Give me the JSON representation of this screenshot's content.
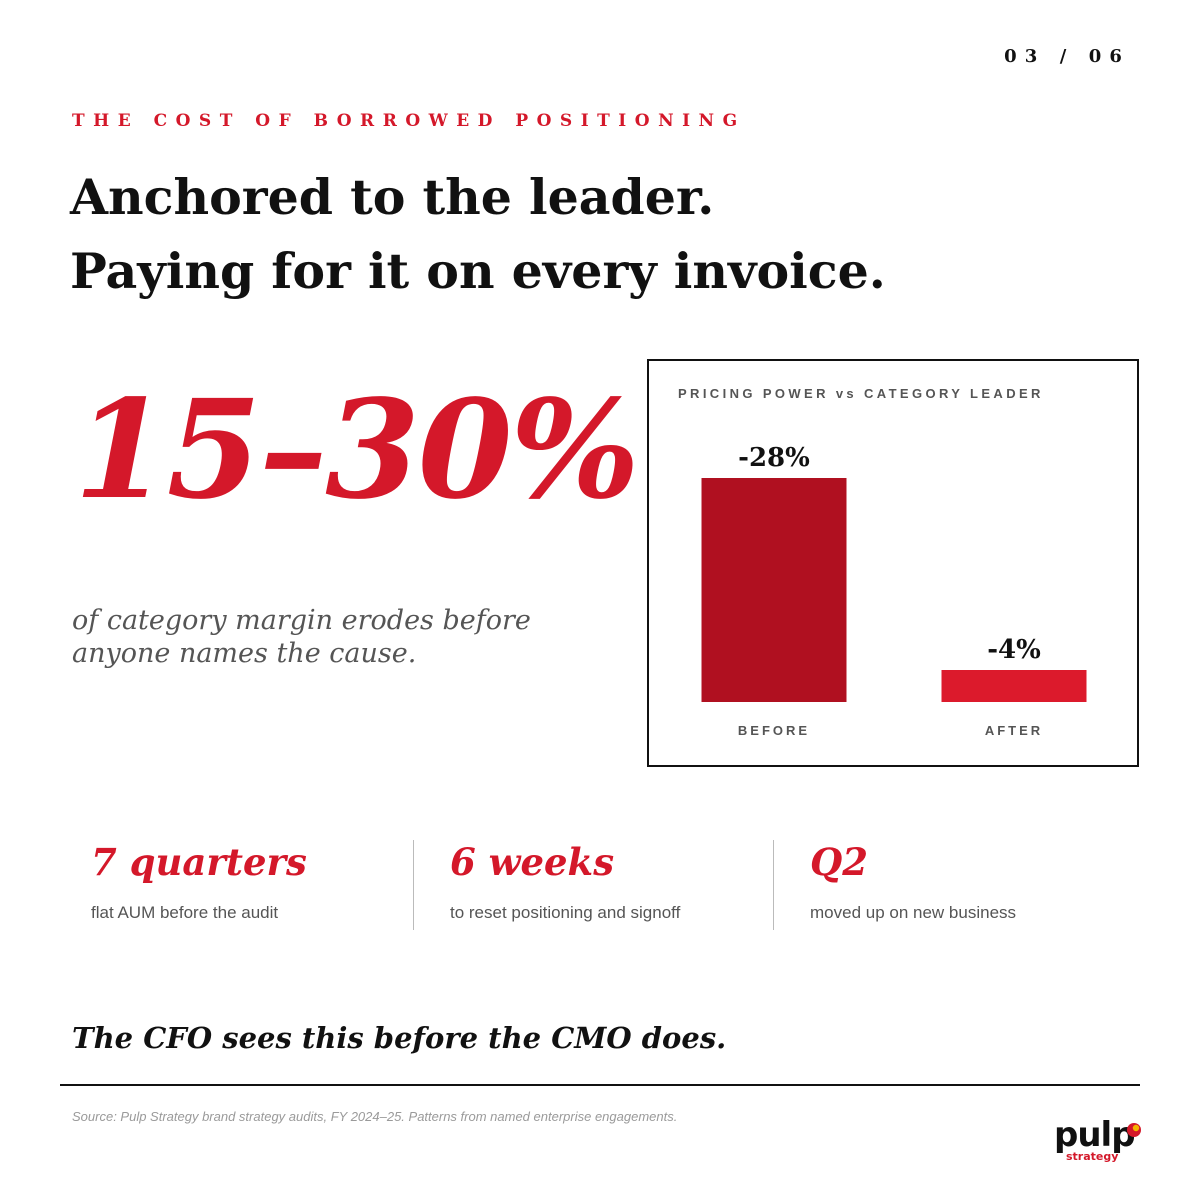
{
  "page_number": "03 / 06",
  "eyebrow": "THE COST OF BORROWED POSITIONING",
  "headline": {
    "line1": "Anchored to the leader.",
    "line2": "Paying for it on every invoice."
  },
  "hero_stat": {
    "value": "15–30%",
    "caption": "of category margin erodes before anyone names the cause."
  },
  "chart_data": {
    "type": "bar",
    "title": "PRICING POWER vs CATEGORY LEADER",
    "categories": [
      "BEFORE",
      "AFTER"
    ],
    "values": [
      -28,
      -4
    ],
    "data_labels": [
      "-28%",
      "-4%"
    ],
    "colors": [
      "#b01020",
      "#dc1a2c"
    ],
    "ylim": [
      -30,
      0
    ],
    "grid": false,
    "xlabel": "",
    "ylabel": ""
  },
  "stats": [
    {
      "value": "7 quarters",
      "desc": "flat AUM before the audit"
    },
    {
      "value": "6 weeks",
      "desc": "to reset positioning and signoff"
    },
    {
      "value": "Q2",
      "desc": "moved up on new business"
    }
  ],
  "closing": "The CFO sees this before the CMO does.",
  "source": "Source: Pulp Strategy brand strategy audits, FY 2024–25. Patterns from named enterprise engagements.",
  "logo": {
    "word": "pulp",
    "sub": "strategy"
  },
  "colors": {
    "accent": "#d4182a",
    "text": "#111111",
    "muted": "#555555"
  }
}
